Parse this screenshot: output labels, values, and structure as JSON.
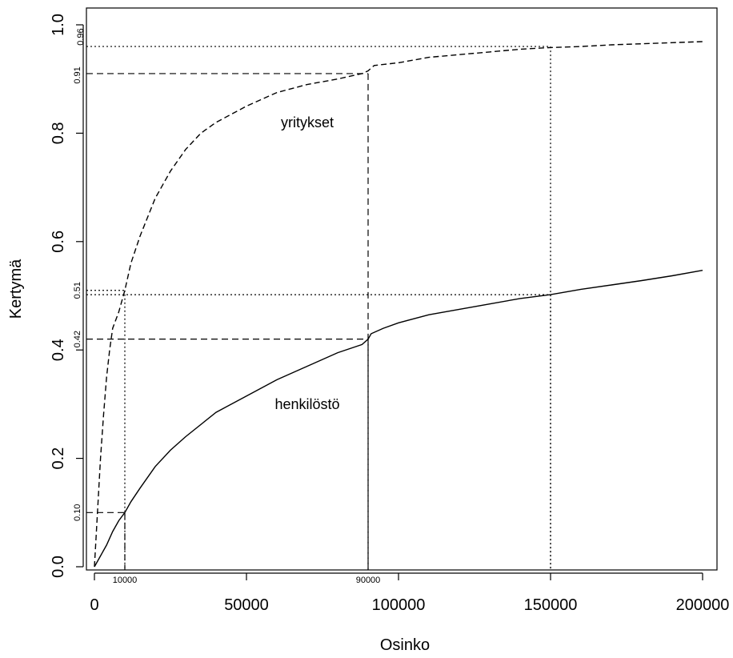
{
  "chart_data": {
    "type": "line",
    "xlabel": "Osinko",
    "ylabel": "Kertymä",
    "xlim": [
      0,
      200000
    ],
    "ylim": [
      0,
      1.0
    ],
    "x_ticks": [
      0,
      50000,
      100000,
      150000,
      200000
    ],
    "x_tick_labels": [
      "0",
      "50000",
      "100000",
      "150000",
      "200000"
    ],
    "y_ticks": [
      0.0,
      0.2,
      0.4,
      0.6,
      0.8,
      1.0
    ],
    "y_tick_labels": [
      "0.0",
      "0.2",
      "0.4",
      "0.6",
      "0.8",
      "1.0"
    ],
    "grid": false,
    "series": [
      {
        "name": "yritykset",
        "line_style": "dashed",
        "x": [
          0,
          1000,
          2000,
          3000,
          4000,
          5000,
          6000,
          8000,
          10000,
          12000,
          15000,
          20000,
          25000,
          30000,
          35000,
          40000,
          50000,
          60000,
          70000,
          80000,
          88000,
          90000,
          92000,
          100000,
          110000,
          120000,
          130000,
          140000,
          150000,
          160000,
          170000,
          180000,
          190000,
          200000
        ],
        "y": [
          0.0,
          0.1,
          0.2,
          0.28,
          0.35,
          0.4,
          0.44,
          0.47,
          0.51,
          0.56,
          0.61,
          0.68,
          0.73,
          0.77,
          0.8,
          0.82,
          0.85,
          0.875,
          0.89,
          0.9,
          0.91,
          0.915,
          0.925,
          0.93,
          0.94,
          0.945,
          0.95,
          0.955,
          0.958,
          0.96,
          0.963,
          0.965,
          0.967,
          0.969
        ]
      },
      {
        "name": "henkilöstö",
        "line_style": "solid",
        "x": [
          0,
          2000,
          4000,
          6000,
          8000,
          10000,
          12000,
          15000,
          20000,
          25000,
          30000,
          40000,
          50000,
          60000,
          70000,
          80000,
          88000,
          90000,
          91000,
          95000,
          100000,
          110000,
          120000,
          130000,
          140000,
          150000,
          160000,
          170000,
          180000,
          190000,
          200000
        ],
        "y": [
          0.0,
          0.02,
          0.04,
          0.065,
          0.085,
          0.1,
          0.12,
          0.145,
          0.185,
          0.215,
          0.24,
          0.285,
          0.315,
          0.345,
          0.37,
          0.395,
          0.41,
          0.42,
          0.43,
          0.44,
          0.45,
          0.465,
          0.475,
          0.485,
          0.495,
          0.502,
          0.512,
          0.52,
          0.528,
          0.537,
          0.547
        ]
      }
    ],
    "annotations": {
      "series_labels": [
        {
          "text": "yritykset",
          "x": 70000,
          "y": 0.82
        },
        {
          "text": "henkilöstö",
          "x": 70000,
          "y": 0.3
        }
      ],
      "x_markers": [
        {
          "label": "10000",
          "x": 10000
        },
        {
          "label": "90000",
          "x": 90000
        }
      ],
      "y_markers": [
        {
          "label": "0.96",
          "y": 0.96
        },
        {
          "label": "0.91",
          "y": 0.91
        },
        {
          "label": "0.51",
          "y": 0.51
        },
        {
          "label": "0.42",
          "y": 0.42
        },
        {
          "label": "0.10",
          "y": 0.1
        }
      ],
      "dashed_guides": [
        {
          "x": 10000,
          "y": 0.1
        },
        {
          "x": 90000,
          "y": 0.91
        },
        {
          "x": 90000,
          "y": 0.42
        }
      ],
      "dotted_guides": [
        {
          "x": 10000,
          "y": 0.51
        },
        {
          "x": 150000,
          "y": 0.96
        },
        {
          "x": 150000,
          "y": 0.502
        }
      ]
    }
  }
}
